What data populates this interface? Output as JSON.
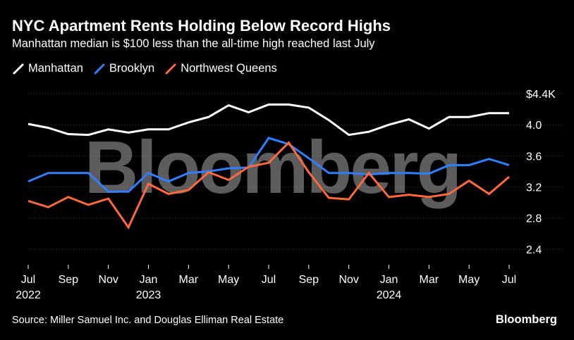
{
  "header": {
    "title": "NYC Apartment Rents Holding Below Record Highs",
    "subtitle": "Manhattan median is $100 less than the all-time high reached last July"
  },
  "footer": {
    "source": "Source: Miller Samuel Inc. and Douglas Elliman Real Estate",
    "brand": "Bloomberg"
  },
  "watermark": "Bloomberg",
  "chart_data": {
    "type": "line",
    "title": "NYC Apartment Rents Holding Below Record Highs",
    "subtitle": "Manhattan median is $100 less than the all-time high reached last July",
    "ylabel": "",
    "xlabel": "",
    "ylim": [
      2.2,
      4.5
    ],
    "yticks": [
      {
        "value": 4.4,
        "label": "$4.4K"
      },
      {
        "value": 4.0,
        "label": "4.0"
      },
      {
        "value": 3.6,
        "label": "3.6"
      },
      {
        "value": 3.2,
        "label": "3.2"
      },
      {
        "value": 2.8,
        "label": "2.8"
      },
      {
        "value": 2.4,
        "label": "2.4"
      }
    ],
    "x": [
      "2022-07",
      "2022-08",
      "2022-09",
      "2022-10",
      "2022-11",
      "2022-12",
      "2023-01",
      "2023-02",
      "2023-03",
      "2023-04",
      "2023-05",
      "2023-06",
      "2023-07",
      "2023-08",
      "2023-09",
      "2023-10",
      "2023-11",
      "2023-12",
      "2024-01",
      "2024-02",
      "2024-03",
      "2024-04",
      "2024-05",
      "2024-06",
      "2024-07"
    ],
    "xticks": [
      {
        "index": 0,
        "label": "Jul",
        "year": "2022"
      },
      {
        "index": 2,
        "label": "Sep",
        "year": ""
      },
      {
        "index": 4,
        "label": "Nov",
        "year": ""
      },
      {
        "index": 6,
        "label": "Jan",
        "year": "2023"
      },
      {
        "index": 8,
        "label": "Mar",
        "year": ""
      },
      {
        "index": 10,
        "label": "May",
        "year": ""
      },
      {
        "index": 12,
        "label": "Jul",
        "year": ""
      },
      {
        "index": 14,
        "label": "Sep",
        "year": ""
      },
      {
        "index": 16,
        "label": "Nov",
        "year": ""
      },
      {
        "index": 18,
        "label": "Jan",
        "year": "2024"
      },
      {
        "index": 20,
        "label": "Mar",
        "year": ""
      },
      {
        "index": 22,
        "label": "May",
        "year": ""
      },
      {
        "index": 24,
        "label": "Jul",
        "year": ""
      }
    ],
    "legend_position": "top-left",
    "series": [
      {
        "name": "Manhattan",
        "color": "#ffffff",
        "values": [
          4.01,
          3.96,
          3.88,
          3.87,
          3.94,
          3.9,
          3.94,
          3.94,
          4.03,
          4.1,
          4.25,
          4.16,
          4.26,
          4.26,
          4.22,
          4.06,
          3.87,
          3.91,
          4.0,
          4.07,
          3.95,
          4.1,
          4.1,
          4.15,
          4.15
        ]
      },
      {
        "name": "Brooklyn",
        "color": "#2f7fff",
        "values": [
          3.27,
          3.38,
          3.38,
          3.38,
          3.14,
          3.14,
          3.38,
          3.27,
          3.38,
          3.4,
          3.44,
          3.45,
          3.83,
          3.75,
          3.57,
          3.38,
          3.38,
          3.36,
          3.38,
          3.38,
          3.37,
          3.48,
          3.48,
          3.56,
          3.48
        ]
      },
      {
        "name": "Northwest Queens",
        "color": "#ff6a3d",
        "values": [
          3.02,
          2.94,
          3.07,
          2.97,
          3.05,
          2.68,
          3.24,
          3.11,
          3.16,
          3.39,
          3.29,
          3.46,
          3.51,
          3.77,
          3.39,
          3.06,
          3.04,
          3.38,
          3.07,
          3.1,
          3.07,
          3.11,
          3.28,
          3.11,
          3.33
        ]
      }
    ]
  }
}
